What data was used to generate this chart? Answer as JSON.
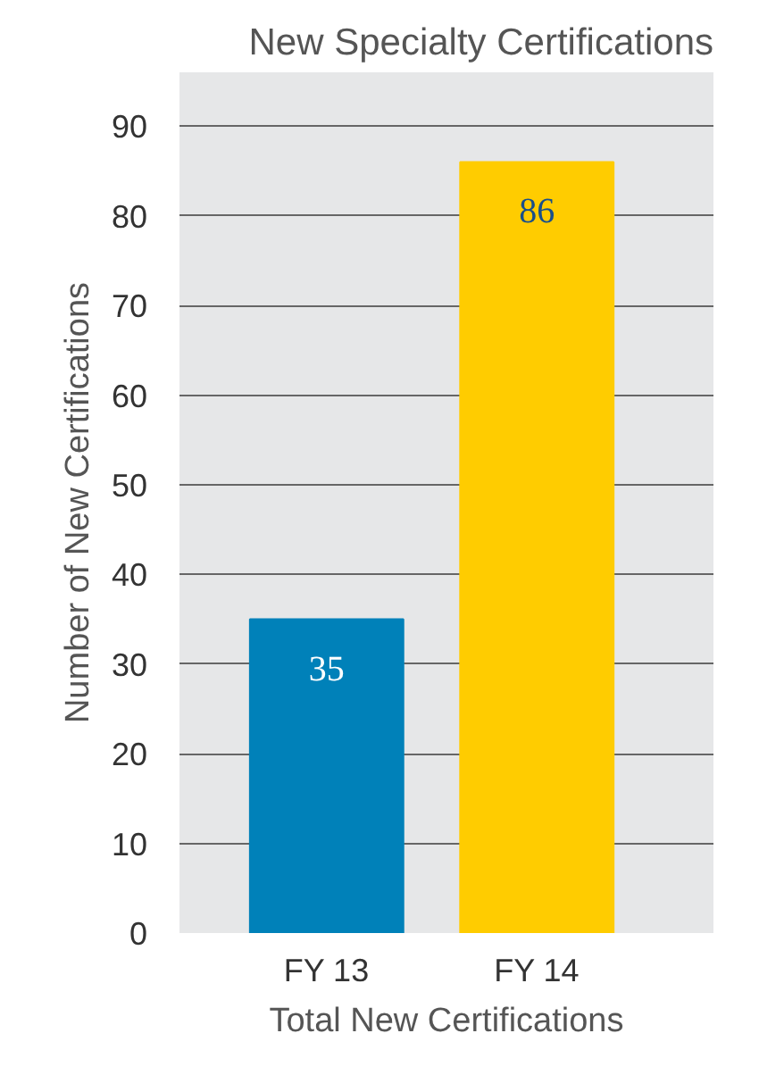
{
  "chart_data": {
    "type": "bar",
    "title": "New Specialty Certifications",
    "xlabel": "Total New Certifications",
    "ylabel": "Number of New Certifications",
    "categories": [
      "FY 13",
      "FY 14"
    ],
    "values": [
      35,
      86
    ],
    "colors": [
      "#0081b9",
      "#ffcc00"
    ],
    "ylim": [
      0,
      96
    ],
    "yticks": [
      0,
      10,
      20,
      30,
      40,
      50,
      60,
      70,
      80,
      90
    ],
    "grid": "y",
    "data_labels": true
  }
}
